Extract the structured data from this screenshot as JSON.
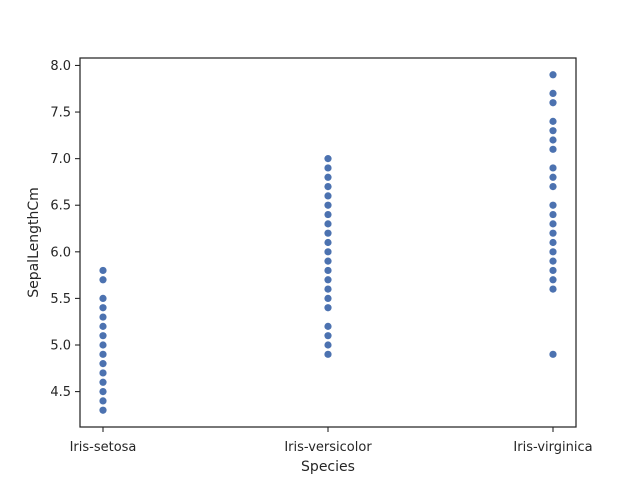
{
  "chart_data": {
    "type": "scatter",
    "title": "",
    "xlabel": "Species",
    "ylabel": "SepalLengthCm",
    "categories": [
      "Iris-setosa",
      "Iris-versicolor",
      "Iris-virginica"
    ],
    "ylim": [
      4.12,
      8.08
    ],
    "yticks": [
      "4.5",
      "5.0",
      "5.5",
      "6.0",
      "6.5",
      "7.0",
      "7.5",
      "8.0"
    ],
    "grid": false,
    "marker_color": "#4c72b0",
    "series": [
      {
        "name": "Iris-setosa",
        "category": "Iris-setosa",
        "values": [
          4.3,
          4.4,
          4.5,
          4.6,
          4.7,
          4.8,
          4.9,
          5.0,
          5.1,
          5.2,
          5.3,
          5.4,
          5.5,
          5.7,
          5.8
        ]
      },
      {
        "name": "Iris-versicolor",
        "category": "Iris-versicolor",
        "values": [
          4.9,
          5.0,
          5.1,
          5.2,
          5.4,
          5.5,
          5.6,
          5.7,
          5.8,
          5.9,
          6.0,
          6.1,
          6.2,
          6.3,
          6.4,
          6.5,
          6.6,
          6.7,
          6.8,
          6.9,
          7.0
        ]
      },
      {
        "name": "Iris-virginica",
        "category": "Iris-virginica",
        "values": [
          4.9,
          5.6,
          5.7,
          5.8,
          5.9,
          6.0,
          6.1,
          6.2,
          6.3,
          6.4,
          6.5,
          6.7,
          6.8,
          6.9,
          7.1,
          7.2,
          7.3,
          7.4,
          7.6,
          7.7,
          7.9
        ]
      }
    ]
  }
}
